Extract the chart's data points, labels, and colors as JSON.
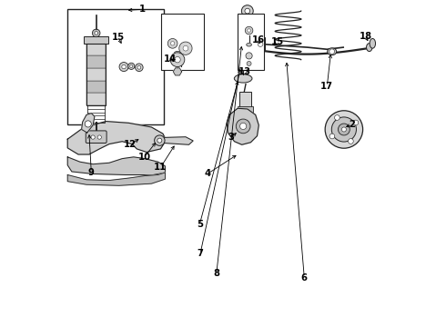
{
  "background_color": "#ffffff",
  "figure_width": 4.9,
  "figure_height": 3.6,
  "dpi": 100,
  "gray": "#222222"
}
